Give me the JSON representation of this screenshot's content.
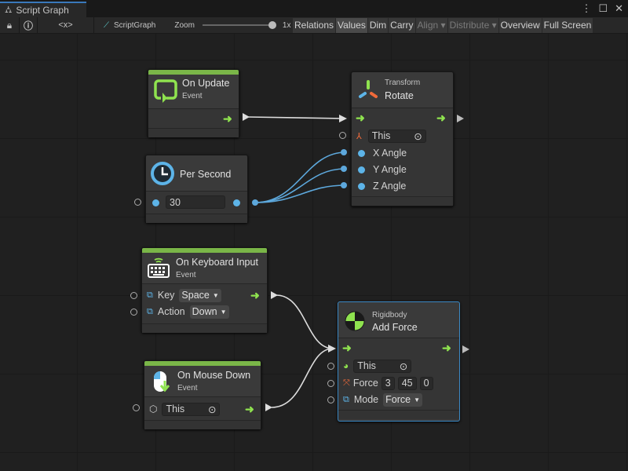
{
  "window": {
    "tab_title": "Script Graph",
    "tab_icon": "hierarchy-icon",
    "menu_icon": "kebab-icon",
    "maximize_icon": "maximize-icon",
    "close_icon": "close-icon"
  },
  "toolbar": {
    "lock_icon": "lock-icon",
    "info_icon": "info-icon",
    "embed_label": "<x>",
    "graph_name": "ScriptGraph",
    "zoom_label": "Zoom",
    "zoom_value": "1x",
    "zoom_level": 1.0,
    "buttons": [
      {
        "label": "Relations",
        "active": false
      },
      {
        "label": "Values",
        "active": true
      },
      {
        "label": "Dim",
        "active": false
      },
      {
        "label": "Carry",
        "active": false
      },
      {
        "label": "Align ▾",
        "disabled": true
      },
      {
        "label": "Distribute ▾",
        "disabled": true
      },
      {
        "label": "Overview",
        "active": false
      },
      {
        "label": "Full Screen",
        "active": false
      }
    ]
  },
  "colors": {
    "event_bar": "#7ab648",
    "flow_arrow": "#8fe34f",
    "value_port": "#5db4e8",
    "selection": "#3b88c3",
    "canvas": "#202020"
  },
  "nodes": {
    "on_update": {
      "title": "On Update",
      "subtitle": "Event"
    },
    "rotate": {
      "subtitle": "Transform",
      "title": "Rotate",
      "target": "This",
      "ports": [
        "X Angle",
        "Y Angle",
        "Z Angle"
      ]
    },
    "per_second": {
      "title": "Per Second",
      "value": "30"
    },
    "keyboard": {
      "title": "On Keyboard Input",
      "subtitle": "Event",
      "key_label": "Key",
      "key_value": "Space",
      "action_label": "Action",
      "action_value": "Down"
    },
    "mouse_down": {
      "title": "On Mouse Down",
      "subtitle": "Event",
      "target": "This"
    },
    "add_force": {
      "subtitle": "Rigidbody",
      "title": "Add Force",
      "target": "This",
      "force_label": "Force",
      "force": [
        "3",
        "45",
        "0"
      ],
      "mode_label": "Mode",
      "mode_value": "Force"
    }
  }
}
